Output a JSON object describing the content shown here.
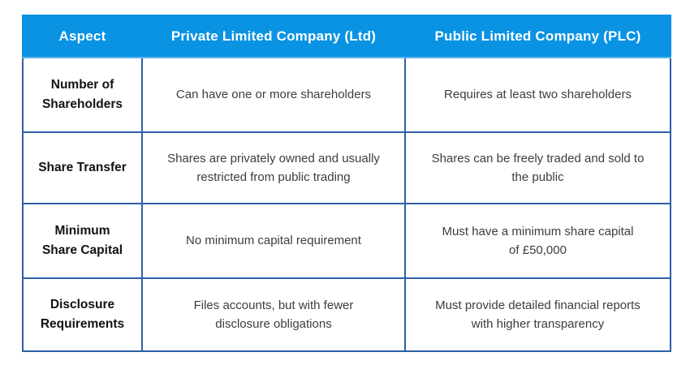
{
  "page": {
    "background": "#ffffff"
  },
  "colors": {
    "header_bg": "#0a93e3",
    "header_text": "#ffffff",
    "header_divider": "#4aa9e9",
    "grid_border": "#2e5fa7",
    "aspect_text": "#121212",
    "body_text": "#3d3d3d"
  },
  "table": {
    "columns": [
      {
        "label": "Aspect"
      },
      {
        "label": "Private Limited Company (Ltd)"
      },
      {
        "label": "Public Limited Company (PLC)"
      }
    ],
    "rows": [
      {
        "aspect": "Number of\nShareholders",
        "ltd": "Can have one or more shareholders",
        "plc": "Requires at least two shareholders"
      },
      {
        "aspect": "Share Transfer",
        "ltd": "Shares are privately owned and usually\nrestricted from public trading",
        "plc": "Shares can be freely traded and sold to\nthe public"
      },
      {
        "aspect": "Minimum\nShare Capital",
        "ltd": "No minimum capital requirement",
        "plc": "Must have a minimum share capital\nof £50,000"
      },
      {
        "aspect": "Disclosure\nRequirements",
        "ltd": "Files accounts, but with fewer\ndisclosure obligations",
        "plc": "Must provide detailed financial reports\nwith higher transparency"
      }
    ]
  }
}
